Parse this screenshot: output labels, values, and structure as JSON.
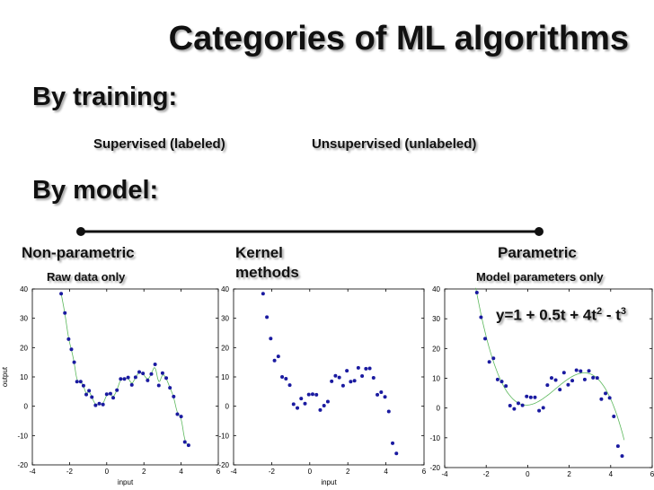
{
  "slide": {
    "title": "Categories of ML algorithms",
    "by_training": "By training:",
    "supervised": "Supervised (labeled)",
    "unsupervised": "Unsupervised (unlabeled)",
    "by_model": "By model:",
    "non_parametric": "Non-parametric",
    "raw_data_only": "Raw data only",
    "kernel_line1": "Kernel",
    "kernel_line2": "methods",
    "parametric": "Parametric",
    "model_params_only": "Model parameters only",
    "formula": {
      "prefix": "y=1 + 0.5t + 4t",
      "exp1": "2",
      "mid": " - t",
      "exp2": "3"
    }
  },
  "chart_data": [
    {
      "type": "scatter",
      "title": "",
      "xlabel": "input",
      "ylabel": "output",
      "xlim": [
        -4,
        6
      ],
      "ylim": [
        -20,
        40
      ],
      "xticks": [
        -4,
        -2,
        0,
        2,
        4,
        6
      ],
      "yticks": [
        -20,
        -10,
        0,
        10,
        20,
        30,
        40
      ],
      "fit": "interpolating curve through points",
      "points": [
        [
          -2.45,
          38.4
        ],
        [
          -2.25,
          31.8
        ],
        [
          -2.05,
          22.9
        ],
        [
          -1.9,
          19.4
        ],
        [
          -1.75,
          15.0
        ],
        [
          -1.6,
          8.4
        ],
        [
          -1.4,
          8.4
        ],
        [
          -1.25,
          7.0
        ],
        [
          -1.1,
          4.0
        ],
        [
          -0.95,
          5.3
        ],
        [
          -0.8,
          3.1
        ],
        [
          -0.6,
          0.3
        ],
        [
          -0.4,
          0.9
        ],
        [
          -0.2,
          0.6
        ],
        [
          0.0,
          4.1
        ],
        [
          0.2,
          4.3
        ],
        [
          0.35,
          2.9
        ],
        [
          0.55,
          5.5
        ],
        [
          0.75,
          9.3
        ],
        [
          0.95,
          9.3
        ],
        [
          1.15,
          9.8
        ],
        [
          1.35,
          7.3
        ],
        [
          1.55,
          9.9
        ],
        [
          1.75,
          11.7
        ],
        [
          1.95,
          11.2
        ],
        [
          2.2,
          8.8
        ],
        [
          2.4,
          11.0
        ],
        [
          2.6,
          14.3
        ],
        [
          2.8,
          7.1
        ],
        [
          3.0,
          11.3
        ],
        [
          3.2,
          9.6
        ],
        [
          3.4,
          6.3
        ],
        [
          3.6,
          3.3
        ],
        [
          3.8,
          -2.7
        ],
        [
          4.0,
          -3.5
        ],
        [
          4.2,
          -12.2
        ],
        [
          4.4,
          -13.3
        ]
      ]
    },
    {
      "type": "scatter",
      "title": "",
      "xlabel": "input",
      "ylabel": "",
      "xlim": [
        -4,
        6
      ],
      "ylim": [
        -20,
        40
      ],
      "xticks": [
        -4,
        -2,
        0,
        2,
        4,
        6
      ],
      "yticks": [
        -20,
        -10,
        0,
        10,
        20,
        30,
        40
      ],
      "fit": "none",
      "points": [
        [
          -2.45,
          38.4
        ],
        [
          -2.25,
          30.4
        ],
        [
          -2.05,
          23.1
        ],
        [
          -1.85,
          15.6
        ],
        [
          -1.65,
          17.0
        ],
        [
          -1.45,
          10.0
        ],
        [
          -1.25,
          9.4
        ],
        [
          -1.05,
          7.2
        ],
        [
          -0.85,
          0.7
        ],
        [
          -0.65,
          -0.6
        ],
        [
          -0.45,
          2.6
        ],
        [
          -0.25,
          0.9
        ],
        [
          -0.05,
          4.0
        ],
        [
          0.15,
          4.1
        ],
        [
          0.35,
          3.9
        ],
        [
          0.55,
          -1.3
        ],
        [
          0.75,
          0.2
        ],
        [
          0.95,
          1.6
        ],
        [
          1.15,
          8.5
        ],
        [
          1.35,
          10.4
        ],
        [
          1.55,
          9.8
        ],
        [
          1.75,
          7.0
        ],
        [
          1.95,
          12.1
        ],
        [
          2.15,
          8.4
        ],
        [
          2.35,
          8.7
        ],
        [
          2.55,
          13.1
        ],
        [
          2.75,
          10.3
        ],
        [
          2.95,
          12.8
        ],
        [
          3.15,
          12.9
        ],
        [
          3.35,
          9.7
        ],
        [
          3.55,
          3.9
        ],
        [
          3.75,
          4.8
        ],
        [
          3.95,
          3.2
        ],
        [
          4.15,
          -1.8
        ],
        [
          4.35,
          -12.6
        ],
        [
          4.55,
          -16.1
        ]
      ]
    },
    {
      "type": "scatter",
      "title": "",
      "xlabel": "",
      "ylabel": "",
      "xlim": [
        -4,
        6
      ],
      "ylim": [
        -20,
        40
      ],
      "xticks": [
        -4,
        -2,
        0,
        2,
        4,
        6
      ],
      "yticks": [
        -20,
        -10,
        0,
        10,
        20,
        30,
        40
      ],
      "fit": "y=1 + 0.5t + 4t^2 - t^3",
      "points": [
        [
          -2.45,
          38.8
        ],
        [
          -2.25,
          30.5
        ],
        [
          -2.05,
          23.3
        ],
        [
          -1.85,
          15.5
        ],
        [
          -1.65,
          16.7
        ],
        [
          -1.45,
          9.6
        ],
        [
          -1.25,
          8.9
        ],
        [
          -1.05,
          7.4
        ],
        [
          -0.85,
          0.8
        ],
        [
          -0.65,
          -0.3
        ],
        [
          -0.45,
          1.6
        ],
        [
          -0.25,
          0.9
        ],
        [
          -0.05,
          3.9
        ],
        [
          0.15,
          3.6
        ],
        [
          0.35,
          3.6
        ],
        [
          0.55,
          -0.9
        ],
        [
          0.75,
          0.1
        ],
        [
          0.95,
          7.7
        ],
        [
          1.15,
          10.1
        ],
        [
          1.35,
          9.4
        ],
        [
          1.55,
          6.2
        ],
        [
          1.75,
          11.9
        ],
        [
          1.95,
          7.8
        ],
        [
          2.15,
          9.2
        ],
        [
          2.35,
          12.7
        ],
        [
          2.55,
          12.4
        ],
        [
          2.75,
          9.6
        ],
        [
          2.95,
          12.5
        ],
        [
          3.15,
          10.2
        ],
        [
          3.35,
          10.1
        ],
        [
          3.55,
          3.0
        ],
        [
          3.75,
          4.9
        ],
        [
          3.95,
          3.4
        ],
        [
          4.15,
          -2.8
        ],
        [
          4.35,
          -12.8
        ],
        [
          4.55,
          -16.1
        ]
      ]
    }
  ]
}
